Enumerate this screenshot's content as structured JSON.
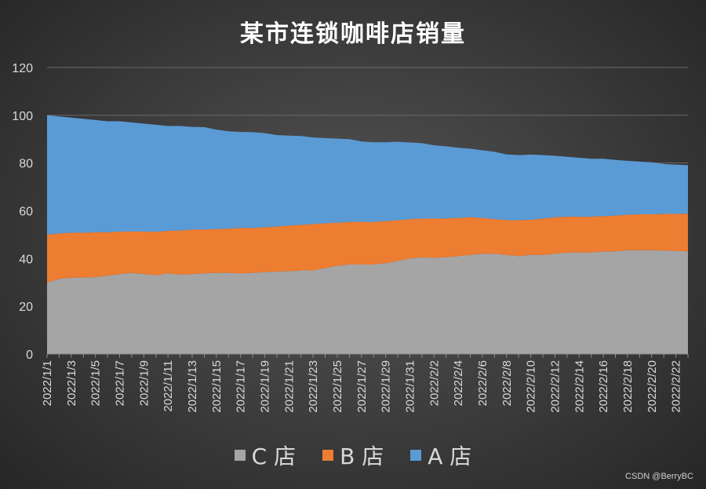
{
  "chart_data": {
    "type": "area",
    "stacked": true,
    "title": "某市连锁咖啡店销量",
    "xlabel": "",
    "ylabel": "",
    "ylim": [
      0,
      120
    ],
    "yticks": [
      "0",
      "20",
      "40",
      "60",
      "80",
      "100",
      "120"
    ],
    "grid": true,
    "legend_position": "bottom",
    "categories": [
      "2022/1/1",
      "2022/1/2",
      "2022/1/3",
      "2022/1/4",
      "2022/1/5",
      "2022/1/6",
      "2022/1/7",
      "2022/1/8",
      "2022/1/9",
      "2022/1/10",
      "2022/1/11",
      "2022/1/12",
      "2022/1/13",
      "2022/1/14",
      "2022/1/15",
      "2022/1/16",
      "2022/1/17",
      "2022/1/18",
      "2022/1/19",
      "2022/1/20",
      "2022/1/21",
      "2022/1/22",
      "2022/1/23",
      "2022/1/24",
      "2022/1/25",
      "2022/1/26",
      "2022/1/27",
      "2022/1/28",
      "2022/1/29",
      "2022/1/30",
      "2022/1/31",
      "2022/2/1",
      "2022/2/2",
      "2022/2/3",
      "2022/2/4",
      "2022/2/5",
      "2022/2/6",
      "2022/2/7",
      "2022/2/8",
      "2022/2/9",
      "2022/2/10",
      "2022/2/11",
      "2022/2/12",
      "2022/2/13",
      "2022/2/14",
      "2022/2/15",
      "2022/2/16",
      "2022/2/17",
      "2022/2/18",
      "2022/2/19",
      "2022/2/20",
      "2022/2/21",
      "2022/2/22",
      "2022/2/23"
    ],
    "tick_labels": [
      "2022/1/1",
      "2022/1/3",
      "2022/1/5",
      "2022/1/7",
      "2022/1/9",
      "2022/1/11",
      "2022/1/13",
      "2022/1/15",
      "2022/1/17",
      "2022/1/19",
      "2022/1/21",
      "2022/1/23",
      "2022/1/25",
      "2022/1/27",
      "2022/1/29",
      "2022/1/31",
      "2022/2/2",
      "2022/2/4",
      "2022/2/6",
      "2022/2/8",
      "2022/2/10",
      "2022/2/12",
      "2022/2/14",
      "2022/2/16",
      "2022/2/18",
      "2022/2/20",
      "2022/2/22"
    ],
    "series": [
      {
        "name": "C 店",
        "color": "#a5a5a5",
        "values": [
          30,
          31.5,
          32,
          32,
          32.2,
          32.8,
          33.5,
          34,
          33.5,
          33,
          33.8,
          33.3,
          33.5,
          33.8,
          34,
          34,
          33.8,
          34,
          34.3,
          34.5,
          34.7,
          35,
          35,
          36,
          37,
          37.5,
          37.5,
          37.5,
          38,
          39,
          40,
          40.5,
          40.3,
          40.5,
          41,
          41.5,
          42,
          42,
          41.5,
          41,
          41.5,
          41.5,
          42,
          42.5,
          42.5,
          42.5,
          43,
          43,
          43.5,
          43.5,
          43.5,
          43.3,
          43.2,
          43
        ]
      },
      {
        "name": "B 店",
        "color": "#ed7d31",
        "values": [
          20,
          19,
          18.8,
          18.8,
          18.8,
          18.2,
          17.8,
          17.3,
          17.8,
          18.2,
          17.8,
          18.4,
          18.6,
          18.4,
          18.3,
          18.5,
          19,
          18.8,
          18.8,
          18.9,
          19.1,
          19.1,
          19.4,
          18.8,
          18,
          17.8,
          17.9,
          17.8,
          17.7,
          17,
          16.5,
          16.2,
          16.4,
          16.3,
          16,
          15.8,
          15,
          14.5,
          14.6,
          15,
          14.7,
          15.2,
          15.3,
          15,
          15,
          15,
          14.8,
          15,
          14.8,
          15,
          15,
          15.4,
          15.5,
          15.8
        ]
      },
      {
        "name": "A 店",
        "color": "#5b9bd5",
        "values": [
          50,
          49,
          48.2,
          47.7,
          47,
          46.5,
          46.2,
          45.7,
          45.2,
          44.8,
          43.9,
          43.8,
          43,
          42.8,
          41.7,
          40.8,
          40.2,
          40.1,
          39.4,
          38.3,
          37.7,
          37.2,
          36.3,
          35.6,
          35.2,
          34.7,
          33.6,
          33.4,
          33,
          32.9,
          32.1,
          31.6,
          30.7,
          30.2,
          29.4,
          28.7,
          28.3,
          28.2,
          27.5,
          27.3,
          27.3,
          26.6,
          25.7,
          25.1,
          24.7,
          24.3,
          24,
          23.3,
          22.6,
          22.1,
          21.8,
          20.9,
          20.6,
          20.3
        ]
      }
    ],
    "watermark": "CSDN @BerryBC"
  }
}
